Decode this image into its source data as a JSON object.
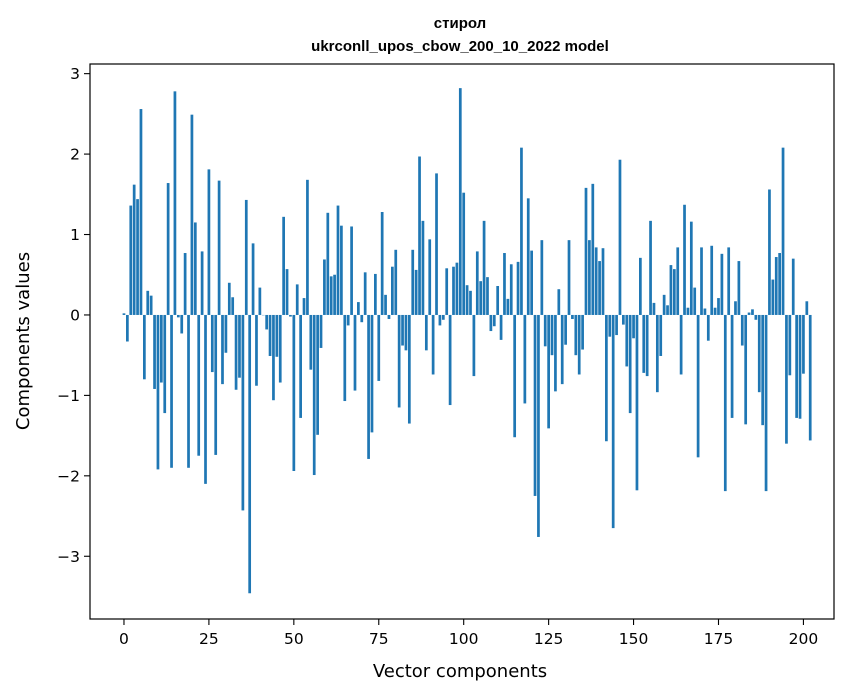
{
  "chart_data": {
    "type": "bar",
    "title": "стирол",
    "subtitle": "ukrconll_upos_cbow_200_10_2022 model",
    "xlabel": "Vector components",
    "ylabel": "Components values",
    "xlim": [
      -10,
      209
    ],
    "ylim": [
      -3.78,
      3.12
    ],
    "xticks": [
      0,
      25,
      50,
      75,
      100,
      125,
      150,
      175,
      200
    ],
    "yticks": [
      -3,
      -2,
      -1,
      0,
      1,
      2,
      3
    ],
    "xtick_labels": [
      "0",
      "25",
      "50",
      "75",
      "100",
      "125",
      "150",
      "175",
      "200"
    ],
    "ytick_labels": [
      "−3",
      "−2",
      "−1",
      "0",
      "1",
      "2",
      "3"
    ],
    "grid": false,
    "color": "#1f77b4",
    "values": [
      0.02,
      -0.33,
      1.36,
      1.62,
      1.44,
      2.56,
      -0.8,
      0.3,
      0.24,
      -0.92,
      -1.92,
      -0.84,
      -1.22,
      1.64,
      -1.9,
      2.78,
      -0.03,
      -0.23,
      0.77,
      -1.9,
      2.49,
      1.15,
      -1.75,
      0.79,
      -2.1,
      1.81,
      -0.71,
      -1.74,
      1.67,
      -0.86,
      -0.47,
      0.4,
      0.22,
      -0.93,
      -0.78,
      -2.43,
      1.43,
      -3.46,
      0.89,
      -0.88,
      0.34,
      0.0,
      -0.18,
      -0.51,
      -1.06,
      -0.52,
      -0.84,
      1.22,
      0.57,
      -0.02,
      -1.94,
      0.38,
      -1.28,
      0.21,
      1.68,
      -0.68,
      -1.99,
      -1.49,
      -0.41,
      0.69,
      1.27,
      0.48,
      0.5,
      1.36,
      1.11,
      -1.07,
      -0.13,
      1.1,
      -0.94,
      0.16,
      -0.09,
      0.53,
      -1.79,
      -1.46,
      0.51,
      -0.82,
      1.28,
      0.25,
      -0.05,
      0.6,
      0.81,
      -1.15,
      -0.38,
      -0.44,
      -1.35,
      0.81,
      0.56,
      1.97,
      1.17,
      -0.44,
      0.94,
      -0.74,
      1.76,
      -0.13,
      -0.06,
      0.58,
      -1.12,
      0.6,
      0.65,
      2.82,
      1.52,
      0.37,
      0.3,
      -0.76,
      0.79,
      0.42,
      1.17,
      0.47,
      -0.2,
      -0.14,
      0.36,
      -0.31,
      0.77,
      0.2,
      0.63,
      -1.52,
      0.66,
      2.08,
      -1.1,
      1.45,
      0.8,
      -2.25,
      -2.76,
      0.93,
      -0.39,
      -1.41,
      -0.5,
      -0.95,
      0.32,
      -0.86,
      -0.37,
      0.93,
      -0.05,
      -0.5,
      -0.74,
      -0.43,
      1.58,
      0.93,
      1.63,
      0.84,
      0.67,
      0.83,
      -1.57,
      -0.27,
      -2.65,
      -0.25,
      1.93,
      -0.12,
      -0.64,
      -1.22,
      -0.29,
      -2.18,
      0.71,
      -0.72,
      -0.76,
      1.17,
      0.15,
      -0.96,
      -0.51,
      0.25,
      0.12,
      0.62,
      0.57,
      0.84,
      -0.74,
      1.37,
      0.09,
      1.16,
      0.34,
      -1.77,
      0.84,
      0.08,
      -0.32,
      0.86,
      0.09,
      0.21,
      0.76,
      -2.19,
      0.84,
      -1.28,
      0.17,
      0.67,
      -0.38,
      -1.36,
      0.03,
      0.07,
      -0.06,
      -0.96,
      -1.37,
      -2.19,
      1.56,
      0.44,
      0.72,
      0.77,
      2.08,
      -1.6,
      -0.75,
      0.7,
      -1.28,
      -1.29,
      -0.73,
      0.17,
      -1.56
    ]
  }
}
